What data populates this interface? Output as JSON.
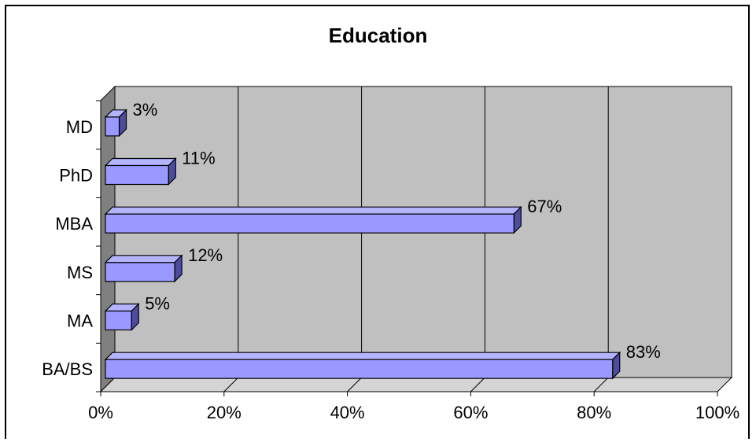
{
  "chart_data": {
    "type": "bar",
    "orientation": "horizontal",
    "title": "Education",
    "categories": [
      "BA/BS",
      "MA",
      "MS",
      "MBA",
      "PhD",
      "MD"
    ],
    "values": [
      83,
      5,
      12,
      67,
      11,
      3
    ],
    "value_labels": [
      "83%",
      "5%",
      "12%",
      "67%",
      "11%",
      "3%"
    ],
    "xlim": [
      0,
      100
    ],
    "x_ticks": [
      "0%",
      "20%",
      "40%",
      "60%",
      "80%",
      "100%"
    ],
    "grid": true,
    "legend": "none",
    "style": "3d"
  },
  "colors": {
    "bar_face": "#9999ff",
    "bar_top": "#b3b3ff",
    "bar_side": "#4d4d99",
    "plot_wall": "#c0c0c0",
    "plot_side_wall": "#808080",
    "floor": "#d4d4d4"
  }
}
